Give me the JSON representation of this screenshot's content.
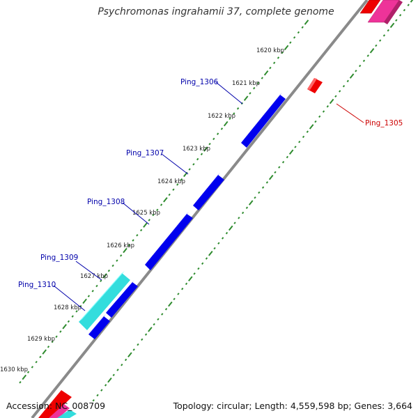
{
  "title": "Psychromonas ingrahamii 37, complete genome",
  "footer": {
    "accession": "Accession: NC_008709",
    "summary": "Topology: circular; Length: 4,559,598 bp; Genes: 3,664"
  },
  "ruler_labels": [
    "1620 kbp",
    "1621 kbp",
    "1622 kbp",
    "1623 kbp",
    "1624 kbp",
    "1625 kbp",
    "1626 kbp",
    "1627 kbp",
    "1628 kbp",
    "1629 kbp",
    "1630 kbp"
  ],
  "gene_labels": [
    {
      "name": "Ping_1306",
      "color": "#0000aa"
    },
    {
      "name": "Ping_1307",
      "color": "#0000aa"
    },
    {
      "name": "Ping_1308",
      "color": "#0000aa"
    },
    {
      "name": "Ping_1309",
      "color": "#0000aa"
    },
    {
      "name": "Ping_1310",
      "color": "#0000aa"
    },
    {
      "name": "Ping_1305",
      "color": "#cc0000"
    }
  ],
  "colors": {
    "backbone": "#8a8a8a",
    "ticks": "#2e8b2e",
    "gene_forward": "#0000ee",
    "gene_cyan": "#33dddd",
    "gene_red": "#ee0000",
    "gene_pink": "#ee3399"
  }
}
